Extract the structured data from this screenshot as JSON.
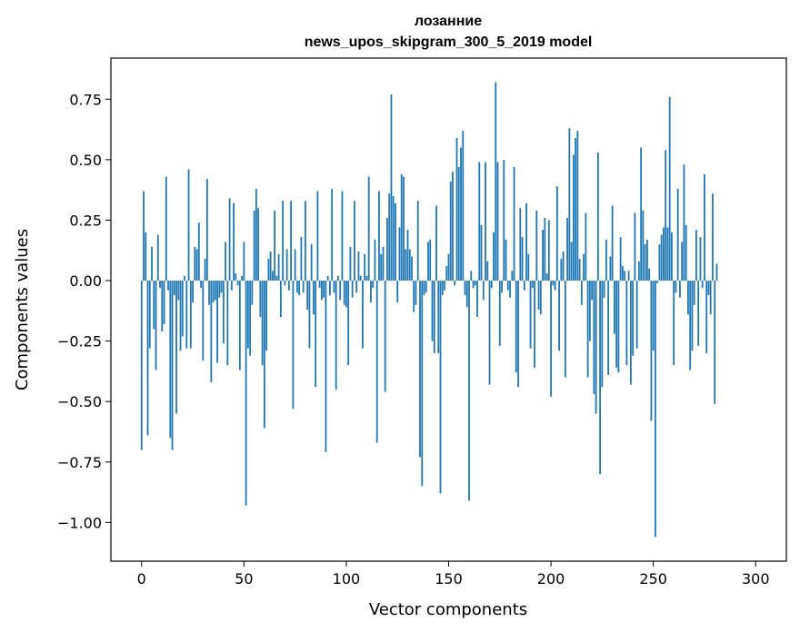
{
  "chart_data": {
    "type": "bar",
    "title": "лозанние",
    "subtitle": "news_upos_skipgram_300_5_2019 model",
    "xlabel": "Vector components",
    "ylabel": "Components values",
    "xlim": [
      -15,
      315
    ],
    "ylim": [
      -1.16,
      0.92
    ],
    "xticks": [
      0,
      50,
      100,
      150,
      200,
      250,
      300
    ],
    "xtick_labels": [
      "0",
      "50",
      "100",
      "150",
      "200",
      "250",
      "300"
    ],
    "yticks": [
      0.75,
      0.5,
      0.25,
      0.0,
      -0.25,
      -0.5,
      -0.75,
      -1.0
    ],
    "ytick_labels": [
      "0.75",
      "0.50",
      "0.25",
      "0.00",
      "−0.25",
      "−0.50",
      "−0.75",
      "−1.00"
    ],
    "color": "#1f77b4",
    "values": [
      -0.7,
      0.37,
      0.2,
      -0.64,
      -0.28,
      0.14,
      -0.2,
      -0.37,
      0.19,
      -0.03,
      -0.21,
      -0.18,
      0.43,
      -0.04,
      -0.65,
      -0.7,
      -0.06,
      -0.55,
      -0.08,
      -0.29,
      -0.23,
      0.02,
      -0.28,
      0.46,
      -0.28,
      -0.09,
      0.14,
      0.13,
      0.24,
      -0.03,
      -0.33,
      0.09,
      0.42,
      -0.1,
      -0.42,
      -0.09,
      -0.08,
      -0.34,
      -0.07,
      -0.05,
      -0.26,
      0.16,
      -0.35,
      0.34,
      -0.04,
      0.32,
      0.03,
      -0.02,
      -0.37,
      0.02,
      0.16,
      -0.93,
      -0.28,
      -0.31,
      -0.1,
      0.29,
      0.38,
      0.3,
      -0.15,
      -0.35,
      -0.61,
      -0.29,
      0.09,
      0.12,
      0.04,
      0.29,
      0.02,
      0.11,
      -0.15,
      0.33,
      -0.02,
      0.13,
      -0.04,
      0.33,
      -0.53,
      0.13,
      -0.05,
      -0.06,
      0.18,
      -0.05,
      0.33,
      -0.12,
      -0.28,
      0.15,
      -0.14,
      -0.44,
      0.37,
      -0.03,
      -0.08,
      -0.07,
      -0.71,
      0.02,
      -0.06,
      0.38,
      -0.05,
      -0.45,
      0.02,
      -0.08,
      0.37,
      -0.1,
      -0.11,
      -0.35,
      0.14,
      -0.07,
      0.33,
      -0.05,
      0.12,
      0.02,
      -0.28,
      0.11,
      0.02,
      0.43,
      -0.09,
      -0.03,
      0.17,
      -0.67,
      0.37,
      0.11,
      0.14,
      -0.46,
      0.26,
      0.36,
      0.77,
      0.35,
      0.32,
      -0.09,
      0.22,
      0.44,
      0.43,
      0.13,
      0.21,
      0.13,
      0.1,
      -0.13,
      -0.1,
      0.33,
      -0.73,
      -0.85,
      -0.06,
      -0.05,
      0.16,
      0.17,
      -0.25,
      -0.3,
      0.31,
      -0.3,
      -0.88,
      -0.06,
      -0.04,
      0.06,
      0.11,
      0.41,
      0.45,
      -0.02,
      0.59,
      0.47,
      0.55,
      0.62,
      -0.06,
      -0.11,
      -0.91,
      0.04,
      -0.03,
      -0.02,
      -0.15,
      0.49,
      0.23,
      -0.08,
      0.49,
      0.08,
      -0.43,
      -0.03,
      0.2,
      0.82,
      0.49,
      -0.27,
      -0.05,
      0.5,
      0.17,
      -0.04,
      -0.07,
      0.04,
      0.47,
      -0.38,
      -0.44,
      0.3,
      0.18,
      -0.04,
      0.32,
      0.11,
      -0.28,
      -0.03,
      -0.36,
      0.29,
      -0.12,
      -0.14,
      0.21,
      0.26,
      0.03,
      0.25,
      -0.48,
      -0.02,
      -0.04,
      0.39,
      -0.29,
      0.09,
      0.12,
      -0.4,
      0.26,
      0.63,
      0.16,
      0.52,
      0.59,
      0.62,
      0.09,
      -0.1,
      0.11,
      0.28,
      -0.4,
      -0.25,
      -0.08,
      -0.47,
      -0.55,
      0.53,
      -0.8,
      -0.44,
      -0.07,
      0.17,
      -0.39,
      0.1,
      0.31,
      -0.22,
      -0.36,
      -0.38,
      0.18,
      0.06,
      0.04,
      -0.35,
      0.04,
      -0.43,
      -0.31,
      0.28,
      -0.28,
      0.08,
      0.55,
      0.29,
      0.15,
      0.17,
      0.05,
      -0.58,
      -0.29,
      -1.06,
      -0.01,
      0.15,
      0.19,
      0.22,
      0.54,
      0.22,
      0.76,
      0.2,
      -0.35,
      -0.05,
      0.38,
      -0.07,
      0.16,
      0.48,
      0.23,
      -0.14,
      -0.37,
      -0.29,
      -0.1,
      0.21,
      -0.27,
      0.18,
      -0.03,
      0.44,
      -0.3,
      -0.06,
      -0.14,
      0.36,
      -0.51,
      0.07
    ]
  }
}
